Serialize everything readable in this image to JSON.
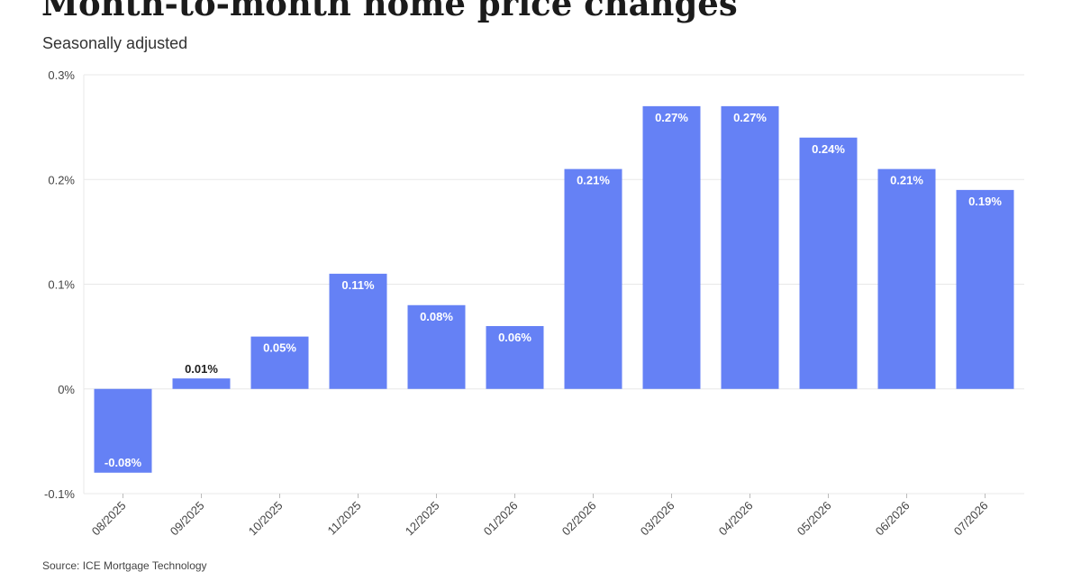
{
  "title": "Month-to-month home price changes",
  "subtitle": "Seasonally adjusted",
  "source": "Source: ICE Mortgage Technology",
  "colors": {
    "bar": "#6581f5",
    "grid": "#e8e8e8",
    "tick_text": "#444444",
    "label_inside": "#ffffff",
    "label_outside": "#222222"
  },
  "chart_data": {
    "type": "bar",
    "title": "Month-to-month home price changes",
    "subtitle": "Seasonally adjusted",
    "categories": [
      "08/2025",
      "09/2025",
      "10/2025",
      "11/2025",
      "12/2025",
      "01/2026",
      "02/2026",
      "03/2026",
      "04/2026",
      "05/2026",
      "06/2026",
      "07/2026"
    ],
    "values": [
      -0.08,
      0.01,
      0.05,
      0.11,
      0.08,
      0.06,
      0.21,
      0.27,
      0.27,
      0.24,
      0.21,
      0.19
    ],
    "data_labels": [
      "-0.08%",
      "0.01%",
      "0.05%",
      "0.11%",
      "0.08%",
      "0.06%",
      "0.21%",
      "0.27%",
      "0.27%",
      "0.24%",
      "0.21%",
      "0.19%"
    ],
    "ylim": [
      -0.1,
      0.3
    ],
    "yticks": [
      -0.1,
      0,
      0.1,
      0.2,
      0.3
    ],
    "ytick_labels": [
      "-0.1%",
      "0%",
      "0.1%",
      "0.2%",
      "0.3%"
    ],
    "grid": true,
    "xlabel": "",
    "ylabel": ""
  }
}
